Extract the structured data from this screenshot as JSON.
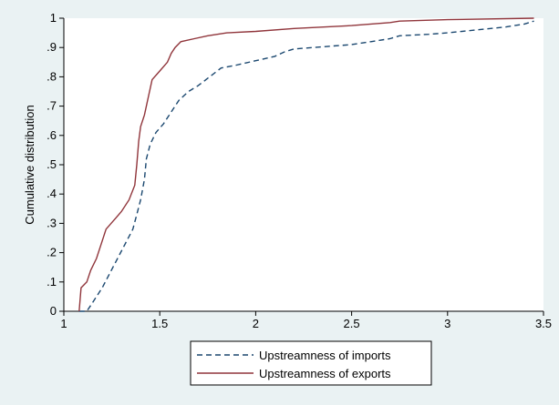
{
  "chart_data": {
    "type": "line",
    "title": "",
    "xlabel": "",
    "ylabel": "Cumulative distribution",
    "xlim": [
      1,
      3.5
    ],
    "ylim": [
      0,
      1
    ],
    "x_ticks": [
      "1",
      "1.5",
      "2",
      "2.5",
      "3",
      "3.5"
    ],
    "y_ticks": [
      "0",
      ".1",
      ".2",
      ".3",
      ".4",
      ".5",
      ".6",
      ".7",
      ".8",
      ".9",
      "1"
    ],
    "grid": false,
    "legend_position": "bottom",
    "series": [
      {
        "name": "Upstreamness of imports",
        "color": "#1a476f",
        "style": "dashed",
        "points": [
          [
            1.08,
            0.0
          ],
          [
            1.12,
            0.0
          ],
          [
            1.14,
            0.02
          ],
          [
            1.17,
            0.05
          ],
          [
            1.2,
            0.08
          ],
          [
            1.24,
            0.13
          ],
          [
            1.28,
            0.18
          ],
          [
            1.32,
            0.23
          ],
          [
            1.36,
            0.28
          ],
          [
            1.38,
            0.33
          ],
          [
            1.4,
            0.38
          ],
          [
            1.42,
            0.45
          ],
          [
            1.43,
            0.52
          ],
          [
            1.45,
            0.57
          ],
          [
            1.48,
            0.61
          ],
          [
            1.52,
            0.64
          ],
          [
            1.56,
            0.68
          ],
          [
            1.6,
            0.72
          ],
          [
            1.65,
            0.75
          ],
          [
            1.7,
            0.77
          ],
          [
            1.76,
            0.8
          ],
          [
            1.82,
            0.83
          ],
          [
            1.9,
            0.84
          ],
          [
            2.0,
            0.855
          ],
          [
            2.1,
            0.87
          ],
          [
            2.15,
            0.885
          ],
          [
            2.2,
            0.895
          ],
          [
            2.3,
            0.9
          ],
          [
            2.5,
            0.91
          ],
          [
            2.6,
            0.92
          ],
          [
            2.7,
            0.93
          ],
          [
            2.75,
            0.94
          ],
          [
            2.9,
            0.945
          ],
          [
            3.0,
            0.95
          ],
          [
            3.15,
            0.96
          ],
          [
            3.3,
            0.97
          ],
          [
            3.4,
            0.98
          ],
          [
            3.45,
            0.99
          ]
        ]
      },
      {
        "name": "Upstreamness of exports",
        "color": "#90353b",
        "style": "solid",
        "points": [
          [
            1.08,
            0.0
          ],
          [
            1.09,
            0.08
          ],
          [
            1.12,
            0.1
          ],
          [
            1.14,
            0.14
          ],
          [
            1.17,
            0.18
          ],
          [
            1.2,
            0.24
          ],
          [
            1.22,
            0.28
          ],
          [
            1.26,
            0.31
          ],
          [
            1.3,
            0.34
          ],
          [
            1.34,
            0.38
          ],
          [
            1.37,
            0.43
          ],
          [
            1.38,
            0.5
          ],
          [
            1.39,
            0.58
          ],
          [
            1.4,
            0.63
          ],
          [
            1.42,
            0.67
          ],
          [
            1.44,
            0.73
          ],
          [
            1.46,
            0.79
          ],
          [
            1.5,
            0.82
          ],
          [
            1.54,
            0.85
          ],
          [
            1.56,
            0.88
          ],
          [
            1.58,
            0.9
          ],
          [
            1.61,
            0.92
          ],
          [
            1.68,
            0.93
          ],
          [
            1.75,
            0.94
          ],
          [
            1.85,
            0.95
          ],
          [
            2.0,
            0.955
          ],
          [
            2.2,
            0.965
          ],
          [
            2.5,
            0.975
          ],
          [
            2.7,
            0.985
          ],
          [
            2.75,
            0.99
          ],
          [
            3.0,
            0.995
          ],
          [
            3.45,
            1.0
          ]
        ]
      }
    ]
  }
}
